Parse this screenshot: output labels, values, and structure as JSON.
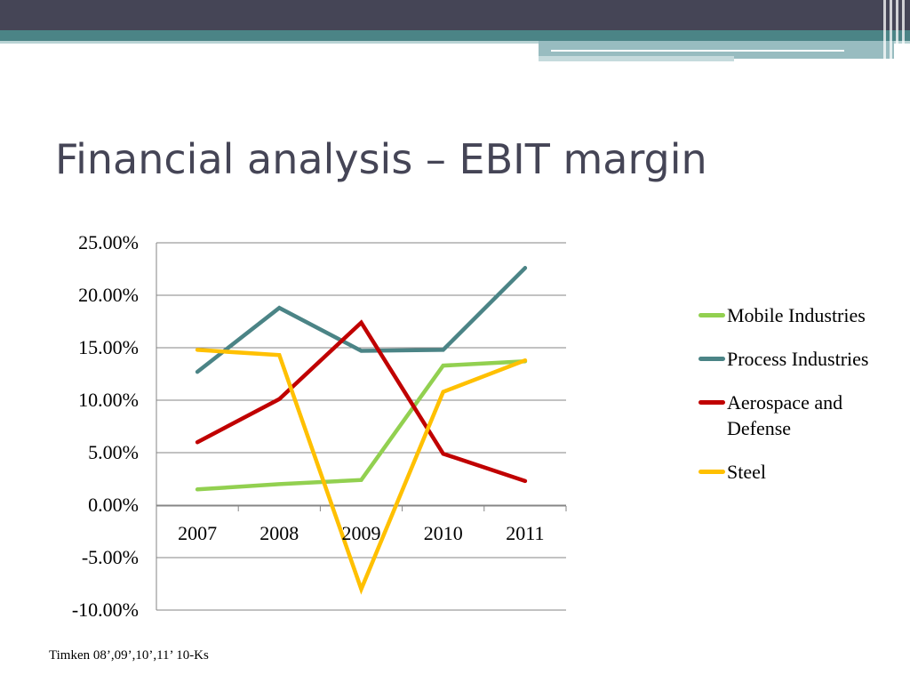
{
  "slide": {
    "title": "Financial analysis – EBIT margin",
    "source_note": "Timken 08’,09’,10’,11’ 10-Ks"
  },
  "colors": {
    "header_dark": "#454556",
    "header_teal": "#4b8486",
    "title_text": "#454556"
  },
  "chart_data": {
    "type": "line",
    "title": "",
    "xlabel": "",
    "ylabel": "",
    "categories": [
      "2007",
      "2008",
      "2009",
      "2010",
      "2011"
    ],
    "ylim": [
      -0.1,
      0.25
    ],
    "yticks": [
      {
        "value": 0.25,
        "label": "25.00%"
      },
      {
        "value": 0.2,
        "label": "20.00%"
      },
      {
        "value": 0.15,
        "label": "15.00%"
      },
      {
        "value": 0.1,
        "label": "10.00%"
      },
      {
        "value": 0.05,
        "label": "5.00%"
      },
      {
        "value": 0.0,
        "label": "0.00%"
      },
      {
        "value": -0.05,
        "label": "-5.00%"
      },
      {
        "value": -0.1,
        "label": "-10.00%"
      }
    ],
    "grid": true,
    "legend_position": "right",
    "series": [
      {
        "name": "Mobile Industries",
        "color": "#92d050",
        "values": [
          0.015,
          0.02,
          0.024,
          0.133,
          0.137
        ]
      },
      {
        "name": "Process Industries",
        "color": "#4b8486",
        "values": [
          0.127,
          0.188,
          0.147,
          0.148,
          0.226
        ]
      },
      {
        "name": "Aerospace and Defense",
        "color": "#c00000",
        "values": [
          0.06,
          0.101,
          0.174,
          0.049,
          0.023
        ]
      },
      {
        "name": "Steel",
        "color": "#ffc000",
        "values": [
          0.148,
          0.143,
          -0.08,
          0.108,
          0.138
        ]
      }
    ]
  }
}
